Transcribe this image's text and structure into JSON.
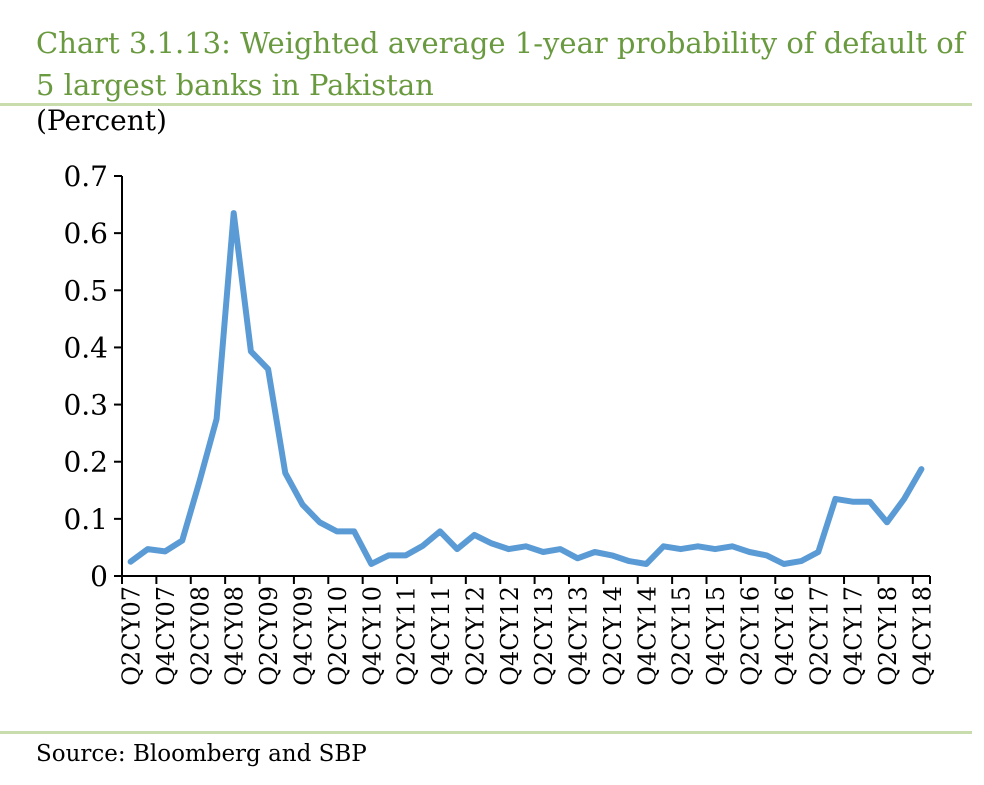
{
  "header": {
    "title": "Chart 3.1.13: Weighted average 1-year probability of default of 5 largest banks in Pakistan",
    "unit_label": "(Percent)"
  },
  "footer": {
    "source": "Source: Bloomberg and SBP"
  },
  "colors": {
    "title": "#6a9a3f",
    "rule": "#c9dcae",
    "line": "#5b9bd5",
    "axis": "#000000"
  },
  "chart_data": {
    "type": "line",
    "title": "",
    "xlabel": "",
    "ylabel": "(Percent)",
    "ylim": [
      0,
      0.7
    ],
    "yticks": [
      0,
      0.1,
      0.2,
      0.3,
      0.4,
      0.5,
      0.6,
      0.7
    ],
    "ytick_labels": [
      "0",
      "0.1",
      "0.2",
      "0.3",
      "0.4",
      "0.5",
      "0.6",
      "0.7"
    ],
    "grid": false,
    "legend": "none",
    "x_tick_labels": [
      "Q2CY07",
      "Q4CY07",
      "Q2CY08",
      "Q4CY08",
      "Q2CY09",
      "Q4CY09",
      "Q2CY10",
      "Q4CY10",
      "Q2CY11",
      "Q4CY11",
      "Q2CY12",
      "Q4CY12",
      "Q2CY13",
      "Q4CY13",
      "Q2CY14",
      "Q4CY14",
      "Q2CY15",
      "Q4CY15",
      "Q2CY16",
      "Q4CY16",
      "Q2CY17",
      "Q4CY17",
      "Q2CY18",
      "Q4CY18"
    ],
    "x": [
      "Q2CY07",
      "Q3CY07",
      "Q4CY07",
      "Q1CY08",
      "Q2CY08",
      "Q3CY08",
      "Q4CY08",
      "Q1CY09",
      "Q2CY09",
      "Q3CY09",
      "Q4CY09",
      "Q1CY10",
      "Q2CY10",
      "Q3CY10",
      "Q4CY10",
      "Q1CY11",
      "Q2CY11",
      "Q3CY11",
      "Q4CY11",
      "Q1CY12",
      "Q2CY12",
      "Q3CY12",
      "Q4CY12",
      "Q1CY13",
      "Q2CY13",
      "Q3CY13",
      "Q4CY13",
      "Q1CY14",
      "Q2CY14",
      "Q3CY14",
      "Q4CY14",
      "Q1CY15",
      "Q2CY15",
      "Q3CY15",
      "Q4CY15",
      "Q1CY16",
      "Q2CY16",
      "Q3CY16",
      "Q4CY16",
      "Q1CY17",
      "Q2CY17",
      "Q3CY17",
      "Q4CY17",
      "Q1CY18",
      "Q2CY18",
      "Q3CY18",
      "Q4CY18"
    ],
    "series": [
      {
        "name": "",
        "values": [
          0.025,
          0.047,
          0.043,
          0.062,
          0.165,
          0.275,
          0.635,
          0.393,
          0.362,
          0.18,
          0.125,
          0.094,
          0.078,
          0.078,
          0.021,
          0.036,
          0.036,
          0.053,
          0.078,
          0.047,
          0.072,
          0.057,
          0.047,
          0.052,
          0.042,
          0.047,
          0.031,
          0.042,
          0.036,
          0.026,
          0.021,
          0.052,
          0.047,
          0.052,
          0.047,
          0.052,
          0.042,
          0.036,
          0.021,
          0.026,
          0.042,
          0.135,
          0.13,
          0.13,
          0.094,
          0.135,
          0.187
        ]
      }
    ]
  }
}
